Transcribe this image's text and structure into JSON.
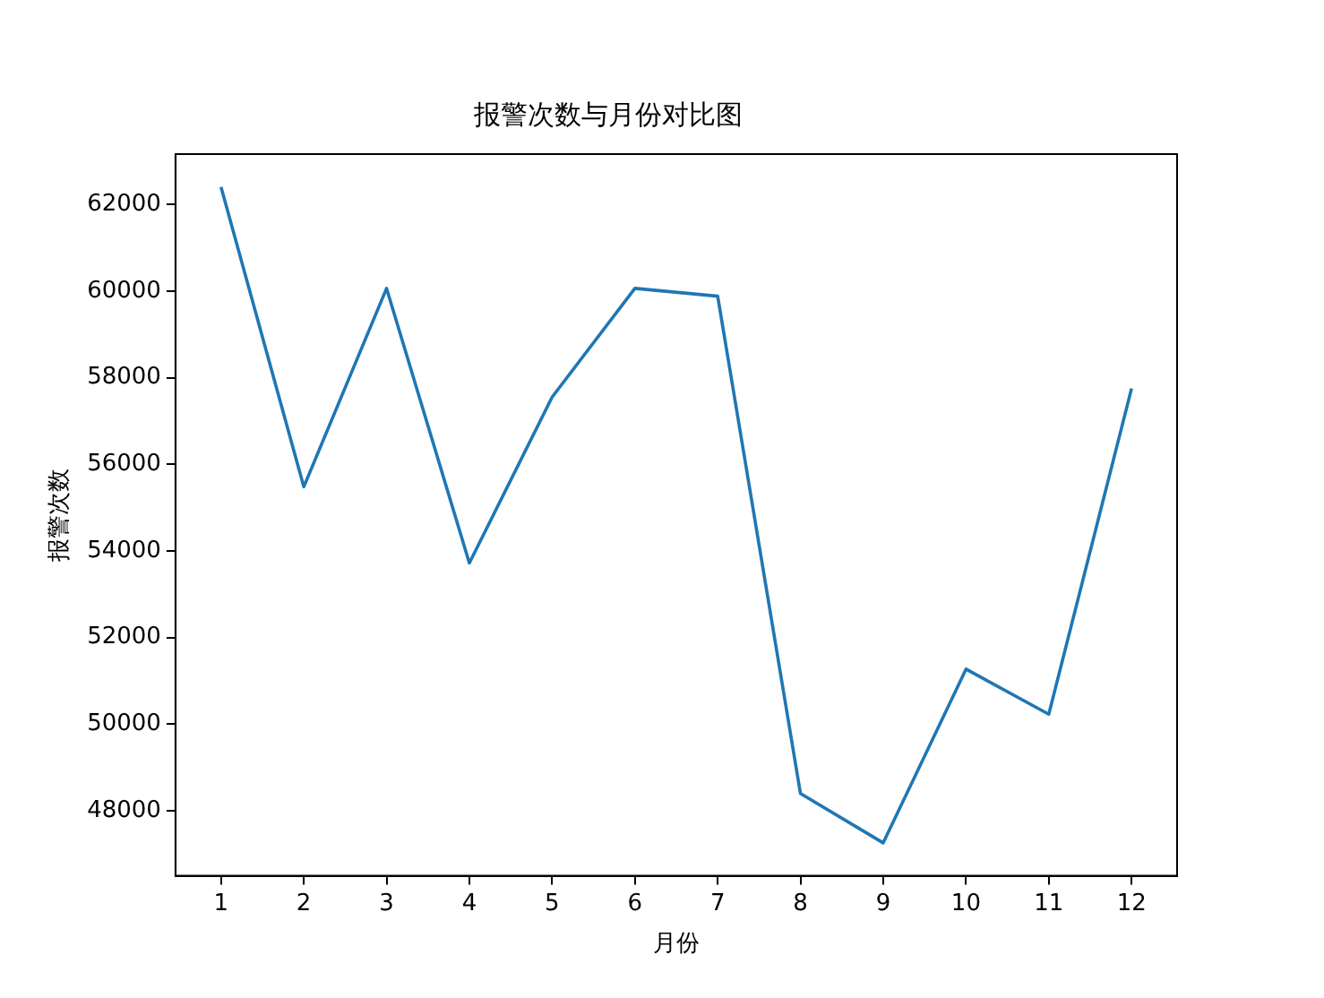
{
  "chart_data": {
    "type": "line",
    "title": "报警次数与月份对比图",
    "xlabel": "月份",
    "ylabel": "报警次数",
    "x": [
      1,
      2,
      3,
      4,
      5,
      6,
      7,
      8,
      9,
      10,
      11,
      12
    ],
    "series": [
      {
        "color": "#1f77b4",
        "values": [
          62400,
          55480,
          60060,
          53720,
          57550,
          60060,
          59880,
          48400,
          47260,
          51270,
          50230,
          57750
        ]
      }
    ],
    "xlim": [
      0.45,
      12.55
    ],
    "xticks": [
      1,
      2,
      3,
      4,
      5,
      6,
      7,
      8,
      9,
      10,
      11,
      12
    ],
    "ylim": [
      46500,
      63160
    ],
    "yticks": [
      48000,
      50000,
      52000,
      54000,
      56000,
      58000,
      60000,
      62000
    ],
    "grid": false,
    "legend": false,
    "marker": "none",
    "line_style": "solid"
  }
}
